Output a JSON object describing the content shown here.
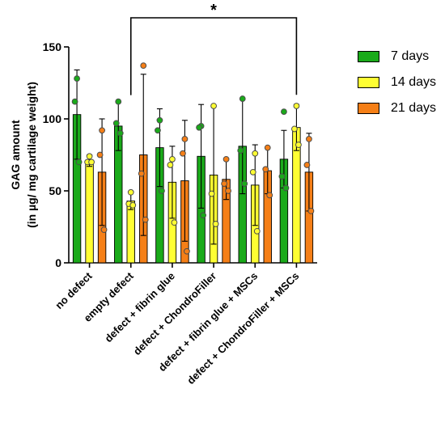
{
  "chart_data": {
    "type": "bar",
    "ylabel_line1": "GAG amount",
    "ylabel_line2": "(in  µg/ mg cartilage weight)",
    "ylim": [
      0,
      150
    ],
    "yticks": [
      0,
      50,
      100,
      150
    ],
    "categories": [
      "no defect",
      "empty defect",
      "defect + fibrin glue",
      "defect + ChondroFiller",
      "defect + fibrin glue + MSCs",
      "defect + ChondroFiller + MSCs"
    ],
    "series": [
      {
        "name": "7 days",
        "color": "#1aaa1a",
        "values": [
          103,
          95,
          80,
          74,
          81,
          72
        ],
        "errors": [
          31,
          17,
          27,
          36,
          33,
          20
        ],
        "points": [
          [
            128,
            112,
            70
          ],
          [
            112,
            97,
            90
          ],
          [
            99,
            92,
            50
          ],
          [
            95,
            94,
            33
          ],
          [
            114,
            78,
            55
          ],
          [
            105,
            60,
            52
          ]
        ]
      },
      {
        "name": "14 days",
        "color": "#ffff33",
        "values": [
          71,
          43,
          56,
          61,
          54,
          94
        ],
        "errors": [
          4,
          6,
          25,
          48,
          28,
          16
        ],
        "points": [
          [
            74,
            70,
            70
          ],
          [
            49,
            41,
            40
          ],
          [
            72,
            68,
            28
          ],
          [
            109,
            48,
            27
          ],
          [
            76,
            63,
            22
          ],
          [
            109,
            93,
            82
          ]
        ]
      },
      {
        "name": "21 days",
        "color": "#f57f17",
        "values": [
          63,
          75,
          57,
          58,
          64,
          63
        ],
        "errors": [
          37,
          56,
          42,
          14,
          16,
          27
        ],
        "points": [
          [
            92,
            75,
            23
          ],
          [
            137,
            62,
            30
          ],
          [
            86,
            76,
            8
          ],
          [
            72,
            55,
            50
          ],
          [
            80,
            65,
            47
          ],
          [
            86,
            68,
            36
          ]
        ]
      }
    ],
    "annotation": "*",
    "annotation_between": [
      "empty defect",
      "defect + ChondroFiller + MSCs"
    ],
    "legend_position": "right"
  }
}
